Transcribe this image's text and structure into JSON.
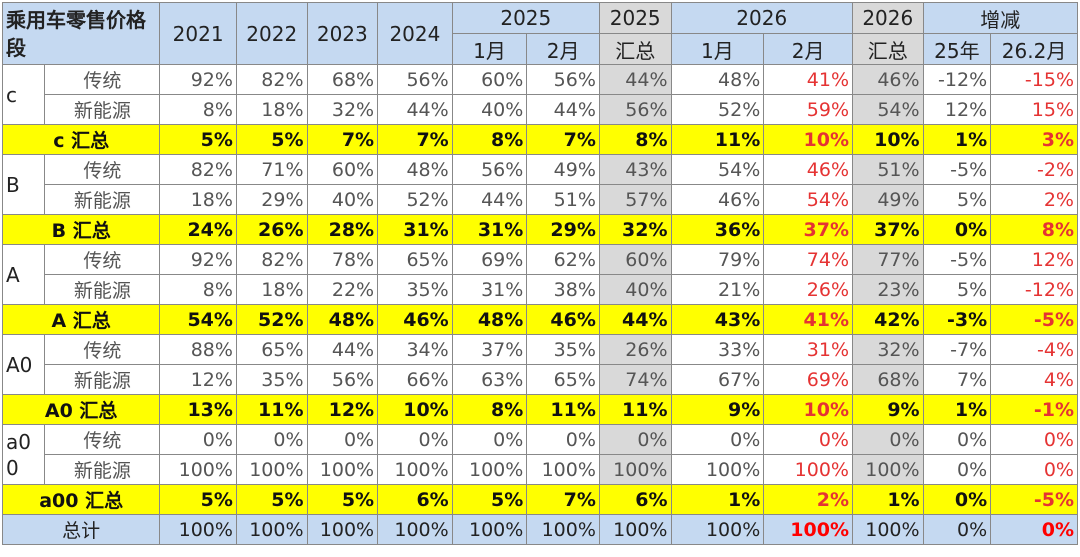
{
  "header": {
    "title": "乘用车零售价格段",
    "years": [
      "2021",
      "2022",
      "2023",
      "2024"
    ],
    "y2025": "2025",
    "months2025": [
      "1月",
      "2月"
    ],
    "total2025": [
      "2025",
      "汇总"
    ],
    "y2026": "2026",
    "months2026": [
      "1月",
      "2月"
    ],
    "total2026": [
      "2026",
      "汇总"
    ],
    "change": "增减",
    "changeCols": [
      "25年",
      "26.2月"
    ]
  },
  "groups": [
    {
      "label": "c",
      "rows": [
        {
          "type": "传统",
          "values": [
            "92%",
            "82%",
            "68%",
            "56%",
            "60%",
            "56%",
            "44%",
            "48%",
            "41%",
            "46%",
            "-12%",
            "-15%"
          ]
        },
        {
          "type": "新能源",
          "values": [
            "8%",
            "18%",
            "32%",
            "44%",
            "40%",
            "44%",
            "56%",
            "52%",
            "59%",
            "54%",
            "12%",
            "15%"
          ]
        }
      ],
      "summary": {
        "label": "c 汇总",
        "values": [
          "5%",
          "5%",
          "7%",
          "7%",
          "8%",
          "7%",
          "8%",
          "11%",
          "10%",
          "10%",
          "1%",
          "3%"
        ]
      }
    },
    {
      "label": "B",
      "rows": [
        {
          "type": "传统",
          "values": [
            "82%",
            "71%",
            "60%",
            "48%",
            "56%",
            "49%",
            "43%",
            "54%",
            "46%",
            "51%",
            "-5%",
            "-2%"
          ]
        },
        {
          "type": "新能源",
          "values": [
            "18%",
            "29%",
            "40%",
            "52%",
            "44%",
            "51%",
            "57%",
            "46%",
            "54%",
            "49%",
            "5%",
            "2%"
          ]
        }
      ],
      "summary": {
        "label": "B 汇总",
        "values": [
          "24%",
          "26%",
          "28%",
          "31%",
          "31%",
          "29%",
          "32%",
          "36%",
          "37%",
          "37%",
          "0%",
          "8%"
        ]
      }
    },
    {
      "label": "A",
      "rows": [
        {
          "type": "传统",
          "values": [
            "92%",
            "82%",
            "78%",
            "65%",
            "69%",
            "62%",
            "60%",
            "79%",
            "74%",
            "77%",
            "-5%",
            "12%"
          ]
        },
        {
          "type": "新能源",
          "values": [
            "8%",
            "18%",
            "22%",
            "35%",
            "31%",
            "38%",
            "40%",
            "21%",
            "26%",
            "23%",
            "5%",
            "-12%"
          ]
        }
      ],
      "summary": {
        "label": "A 汇总",
        "values": [
          "54%",
          "52%",
          "48%",
          "46%",
          "48%",
          "46%",
          "44%",
          "43%",
          "41%",
          "42%",
          "-3%",
          "-5%"
        ]
      }
    },
    {
      "label": "A0",
      "rows": [
        {
          "type": "传统",
          "values": [
            "88%",
            "65%",
            "44%",
            "34%",
            "37%",
            "35%",
            "26%",
            "33%",
            "31%",
            "32%",
            "-7%",
            "-4%"
          ]
        },
        {
          "type": "新能源",
          "values": [
            "12%",
            "35%",
            "56%",
            "66%",
            "63%",
            "65%",
            "74%",
            "67%",
            "69%",
            "68%",
            "7%",
            "4%"
          ]
        }
      ],
      "summary": {
        "label": "A0 汇总",
        "values": [
          "13%",
          "11%",
          "12%",
          "10%",
          "8%",
          "11%",
          "11%",
          "9%",
          "10%",
          "9%",
          "1%",
          "-1%"
        ]
      }
    },
    {
      "label": "a00",
      "rows": [
        {
          "type": "传统",
          "values": [
            "0%",
            "0%",
            "0%",
            "0%",
            "0%",
            "0%",
            "0%",
            "0%",
            "0%",
            "0%",
            "0%",
            "0%"
          ]
        },
        {
          "type": "新能源",
          "values": [
            "100%",
            "100%",
            "100%",
            "100%",
            "100%",
            "100%",
            "100%",
            "100%",
            "100%",
            "100%",
            "0%",
            "0%"
          ]
        }
      ],
      "summary": {
        "label": "a00 汇总",
        "values": [
          "5%",
          "5%",
          "5%",
          "6%",
          "5%",
          "7%",
          "6%",
          "1%",
          "2%",
          "1%",
          "0%",
          "-5%"
        ]
      }
    }
  ],
  "total": {
    "label": "总计",
    "values": [
      "100%",
      "100%",
      "100%",
      "100%",
      "100%",
      "100%",
      "100%",
      "100%",
      "100%",
      "100%",
      "0%",
      "0%"
    ]
  }
}
